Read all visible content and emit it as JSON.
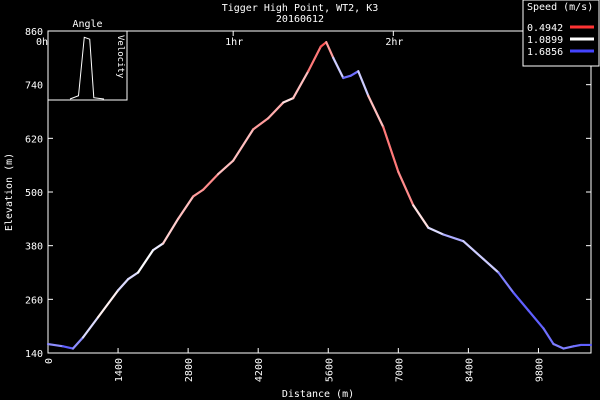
{
  "chart_data": {
    "type": "line",
    "title_lines": [
      "Tigger High Point, WT2, K3",
      "20160612"
    ],
    "xlabel": "Distance (m)",
    "ylabel": "Elevation (m)",
    "xlim": [
      0,
      10850
    ],
    "ylim": [
      140,
      860
    ],
    "xticks": [
      0,
      1400,
      2800,
      4200,
      5600,
      7000,
      8400,
      9800
    ],
    "yticks": [
      140,
      260,
      380,
      500,
      620,
      740,
      860
    ],
    "time_markers": [
      {
        "label": "0h",
        "distance": 0
      },
      {
        "label": "1hr",
        "distance": 3700
      },
      {
        "label": "2hr",
        "distance": 6900
      }
    ],
    "grid": false,
    "legend": {
      "position": "top-right",
      "title": "Speed (m/s)",
      "entries": [
        {
          "label": "0.4942",
          "color": "#ff3333"
        },
        {
          "label": "1.0899",
          "color": "#ffffff"
        },
        {
          "label": "1.6856",
          "color": "#4444ff"
        }
      ]
    },
    "inset": {
      "title": "Angle",
      "side_label": "Velocity",
      "points": [
        [
          0,
          0
        ],
        [
          0.25,
          0.05
        ],
        [
          0.42,
          0.95
        ],
        [
          0.58,
          0.92
        ],
        [
          0.7,
          0.02
        ],
        [
          1,
          0
        ]
      ]
    },
    "series": [
      {
        "x": [
          0,
          300,
          500,
          700,
          1000,
          1400,
          1600,
          1800,
          2100,
          2300,
          2600,
          2900,
          3100,
          3400,
          3700,
          4100,
          4400,
          4700,
          4900,
          5200,
          5450,
          5560,
          5700,
          5900,
          6050,
          6200,
          6400,
          6700,
          7000,
          7300,
          7600,
          7900,
          8300,
          8700,
          9000,
          9300,
          9600,
          9900,
          10100,
          10300,
          10500,
          10650,
          10850
        ],
        "y": [
          160,
          155,
          150,
          175,
          220,
          280,
          305,
          320,
          370,
          385,
          440,
          490,
          505,
          540,
          570,
          640,
          665,
          700,
          710,
          770,
          825,
          835,
          800,
          755,
          760,
          770,
          715,
          645,
          545,
          470,
          420,
          405,
          390,
          350,
          320,
          275,
          235,
          195,
          160,
          150,
          155,
          158,
          158
        ],
        "speed": [
          1.3,
          1.6,
          1.6,
          1.3,
          1.1,
          1.0,
          1.4,
          1.0,
          1.2,
          1.1,
          0.8,
          1.0,
          0.6,
          0.9,
          0.9,
          0.9,
          0.7,
          1.0,
          1.0,
          0.8,
          0.6,
          0.6,
          1.0,
          1.5,
          1.6,
          1.5,
          1.0,
          0.8,
          0.6,
          0.9,
          1.1,
          1.3,
          1.4,
          1.1,
          1.4,
          1.6,
          1.6,
          1.6,
          1.5,
          1.5,
          1.5,
          1.6,
          1.6
        ]
      }
    ]
  }
}
